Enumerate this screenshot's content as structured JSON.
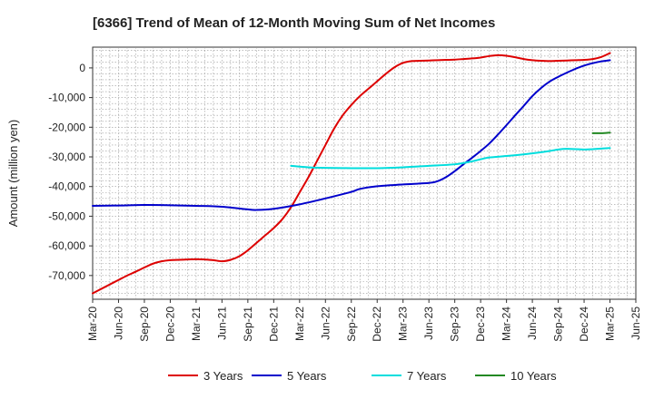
{
  "chart_data": {
    "type": "line",
    "title": "[6366]  Trend of Mean of 12-Month Moving Sum of Net Incomes",
    "xlabel": "",
    "ylabel": "Amount (million yen)",
    "ylim": [
      -78000,
      7000
    ],
    "yticks": [
      0,
      -10000,
      -20000,
      -30000,
      -40000,
      -50000,
      -60000,
      -70000
    ],
    "ytick_labels": [
      "0",
      "-10,000",
      "-20,000",
      "-30,000",
      "-40,000",
      "-50,000",
      "-60,000",
      "-70,000"
    ],
    "xlim": [
      "2020-03",
      "2025-06"
    ],
    "xtick_labels": [
      "Mar-20",
      "Jun-20",
      "Sep-20",
      "Dec-20",
      "Mar-21",
      "Jun-21",
      "Sep-21",
      "Dec-21",
      "Mar-22",
      "Jun-22",
      "Sep-22",
      "Dec-22",
      "Mar-23",
      "Jun-23",
      "Sep-23",
      "Dec-23",
      "Mar-24",
      "Jun-24",
      "Sep-24",
      "Dec-24",
      "Mar-25",
      "Jun-25"
    ],
    "grid": true,
    "legend_position": "bottom",
    "series": [
      {
        "name": "3 Years",
        "color": "#dd0000",
        "points": [
          [
            "2020-03",
            -76000
          ],
          [
            "2020-04",
            -74500
          ],
          [
            "2020-05",
            -73000
          ],
          [
            "2020-06",
            -71500
          ],
          [
            "2020-07",
            -70000
          ],
          [
            "2020-08",
            -68700
          ],
          [
            "2020-09",
            -67300
          ],
          [
            "2020-10",
            -66000
          ],
          [
            "2020-11",
            -65200
          ],
          [
            "2020-12",
            -64800
          ],
          [
            "2021-01",
            -64700
          ],
          [
            "2021-02",
            -64600
          ],
          [
            "2021-03",
            -64500
          ],
          [
            "2021-04",
            -64600
          ],
          [
            "2021-05",
            -64800
          ],
          [
            "2021-06",
            -65200
          ],
          [
            "2021-07",
            -64700
          ],
          [
            "2021-08",
            -63500
          ],
          [
            "2021-09",
            -61500
          ],
          [
            "2021-10",
            -59000
          ],
          [
            "2021-11",
            -56500
          ],
          [
            "2021-12",
            -54000
          ],
          [
            "2022-01",
            -51000
          ],
          [
            "2022-02",
            -47000
          ],
          [
            "2022-03",
            -42000
          ],
          [
            "2022-04",
            -37000
          ],
          [
            "2022-05",
            -31500
          ],
          [
            "2022-06",
            -26000
          ],
          [
            "2022-07",
            -20500
          ],
          [
            "2022-08",
            -16000
          ],
          [
            "2022-09",
            -12500
          ],
          [
            "2022-10",
            -9500
          ],
          [
            "2022-11",
            -7000
          ],
          [
            "2022-12",
            -4500
          ],
          [
            "2023-01",
            -2000
          ],
          [
            "2023-02",
            200
          ],
          [
            "2023-03",
            1700
          ],
          [
            "2023-04",
            2300
          ],
          [
            "2023-05",
            2400
          ],
          [
            "2023-06",
            2500
          ],
          [
            "2023-07",
            2600
          ],
          [
            "2023-08",
            2700
          ],
          [
            "2023-09",
            2800
          ],
          [
            "2023-10",
            3000
          ],
          [
            "2023-11",
            3200
          ],
          [
            "2023-12",
            3500
          ],
          [
            "2024-01",
            4000
          ],
          [
            "2024-02",
            4300
          ],
          [
            "2024-03",
            4100
          ],
          [
            "2024-04",
            3600
          ],
          [
            "2024-05",
            3000
          ],
          [
            "2024-06",
            2600
          ],
          [
            "2024-07",
            2400
          ],
          [
            "2024-08",
            2300
          ],
          [
            "2024-09",
            2400
          ],
          [
            "2024-10",
            2500
          ],
          [
            "2024-11",
            2600
          ],
          [
            "2024-12",
            2700
          ],
          [
            "2025-01",
            3000
          ],
          [
            "2025-02",
            3700
          ],
          [
            "2025-03",
            5000
          ]
        ]
      },
      {
        "name": "5 Years",
        "color": "#0000cc",
        "points": [
          [
            "2020-03",
            -46500
          ],
          [
            "2020-06",
            -46400
          ],
          [
            "2020-09",
            -46200
          ],
          [
            "2020-12",
            -46300
          ],
          [
            "2021-03",
            -46500
          ],
          [
            "2021-06",
            -46800
          ],
          [
            "2021-09",
            -47700
          ],
          [
            "2021-10",
            -47900
          ],
          [
            "2021-12",
            -47500
          ],
          [
            "2022-03",
            -46000
          ],
          [
            "2022-06",
            -44000
          ],
          [
            "2022-09",
            -41800
          ],
          [
            "2022-10",
            -40800
          ],
          [
            "2022-12",
            -39900
          ],
          [
            "2023-03",
            -39300
          ],
          [
            "2023-06",
            -38800
          ],
          [
            "2023-07",
            -38200
          ],
          [
            "2023-08",
            -36800
          ],
          [
            "2023-09",
            -34800
          ],
          [
            "2023-10",
            -32500
          ],
          [
            "2023-11",
            -30300
          ],
          [
            "2023-12",
            -28000
          ],
          [
            "2024-01",
            -25500
          ],
          [
            "2024-02",
            -22500
          ],
          [
            "2024-03",
            -19300
          ],
          [
            "2024-04",
            -16000
          ],
          [
            "2024-05",
            -12800
          ],
          [
            "2024-06",
            -9500
          ],
          [
            "2024-07",
            -6800
          ],
          [
            "2024-08",
            -4600
          ],
          [
            "2024-09",
            -3000
          ],
          [
            "2024-10",
            -1600
          ],
          [
            "2024-11",
            -300
          ],
          [
            "2024-12",
            800
          ],
          [
            "2025-01",
            1600
          ],
          [
            "2025-02",
            2200
          ],
          [
            "2025-03",
            2600
          ]
        ]
      },
      {
        "name": "7 Years",
        "color": "#00dddd",
        "points": [
          [
            "2022-02",
            -33000
          ],
          [
            "2022-04",
            -33500
          ],
          [
            "2022-06",
            -33700
          ],
          [
            "2022-09",
            -33800
          ],
          [
            "2022-12",
            -33800
          ],
          [
            "2023-03",
            -33500
          ],
          [
            "2023-06",
            -33000
          ],
          [
            "2023-09",
            -32500
          ],
          [
            "2023-11",
            -31500
          ],
          [
            "2023-12",
            -30800
          ],
          [
            "2024-01",
            -30200
          ],
          [
            "2024-03",
            -29700
          ],
          [
            "2024-06",
            -28800
          ],
          [
            "2024-08",
            -28000
          ],
          [
            "2024-09",
            -27500
          ],
          [
            "2024-10",
            -27300
          ],
          [
            "2024-12",
            -27500
          ],
          [
            "2025-01",
            -27400
          ],
          [
            "2025-03",
            -27000
          ]
        ]
      },
      {
        "name": "10 Years",
        "color": "#228822",
        "points": [
          [
            "2025-01",
            -22000
          ],
          [
            "2025-02",
            -22000
          ],
          [
            "2025-03",
            -21800
          ]
        ]
      }
    ]
  }
}
